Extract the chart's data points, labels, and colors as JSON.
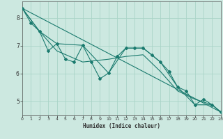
{
  "title": "",
  "xlabel": "Humidex (Indice chaleur)",
  "ylabel": "",
  "background_color": "#cce8e0",
  "grid_color": "#aad4c8",
  "line_color": "#1a7a6e",
  "xlim": [
    0,
    23
  ],
  "ylim": [
    4.5,
    8.6
  ],
  "yticks": [
    5,
    6,
    7,
    8
  ],
  "xticks": [
    0,
    1,
    2,
    3,
    4,
    5,
    6,
    7,
    8,
    9,
    10,
    11,
    12,
    13,
    14,
    15,
    16,
    17,
    18,
    19,
    20,
    21,
    22,
    23
  ],
  "series": [
    [
      0,
      8.35
    ],
    [
      1,
      7.82
    ],
    [
      2,
      7.52
    ],
    [
      3,
      6.82
    ],
    [
      4,
      7.08
    ],
    [
      5,
      6.52
    ],
    [
      6,
      6.42
    ],
    [
      7,
      7.02
    ],
    [
      8,
      6.42
    ],
    [
      9,
      5.82
    ],
    [
      10,
      6.02
    ],
    [
      11,
      6.62
    ],
    [
      12,
      6.92
    ],
    [
      13,
      6.92
    ],
    [
      14,
      6.92
    ],
    [
      15,
      6.68
    ],
    [
      16,
      6.42
    ],
    [
      17,
      6.08
    ],
    [
      18,
      5.52
    ],
    [
      19,
      5.38
    ],
    [
      20,
      4.88
    ],
    [
      21,
      5.08
    ],
    [
      22,
      4.88
    ],
    [
      23,
      4.62
    ]
  ],
  "line2_x": [
    0,
    23
  ],
  "line2_y": [
    8.35,
    4.62
  ],
  "line3_x": [
    0,
    2,
    4,
    7,
    10,
    12,
    14,
    16,
    18,
    20,
    22,
    23
  ],
  "line3_y": [
    8.35,
    7.52,
    7.08,
    7.02,
    6.02,
    6.92,
    6.92,
    6.42,
    5.52,
    4.88,
    4.88,
    4.62
  ],
  "line4_x": [
    0,
    2,
    4,
    7,
    10,
    12,
    14,
    16,
    18,
    20,
    22,
    23
  ],
  "line4_y": [
    8.35,
    7.52,
    6.82,
    6.42,
    6.52,
    6.62,
    6.68,
    6.08,
    5.38,
    5.08,
    4.88,
    4.62
  ]
}
